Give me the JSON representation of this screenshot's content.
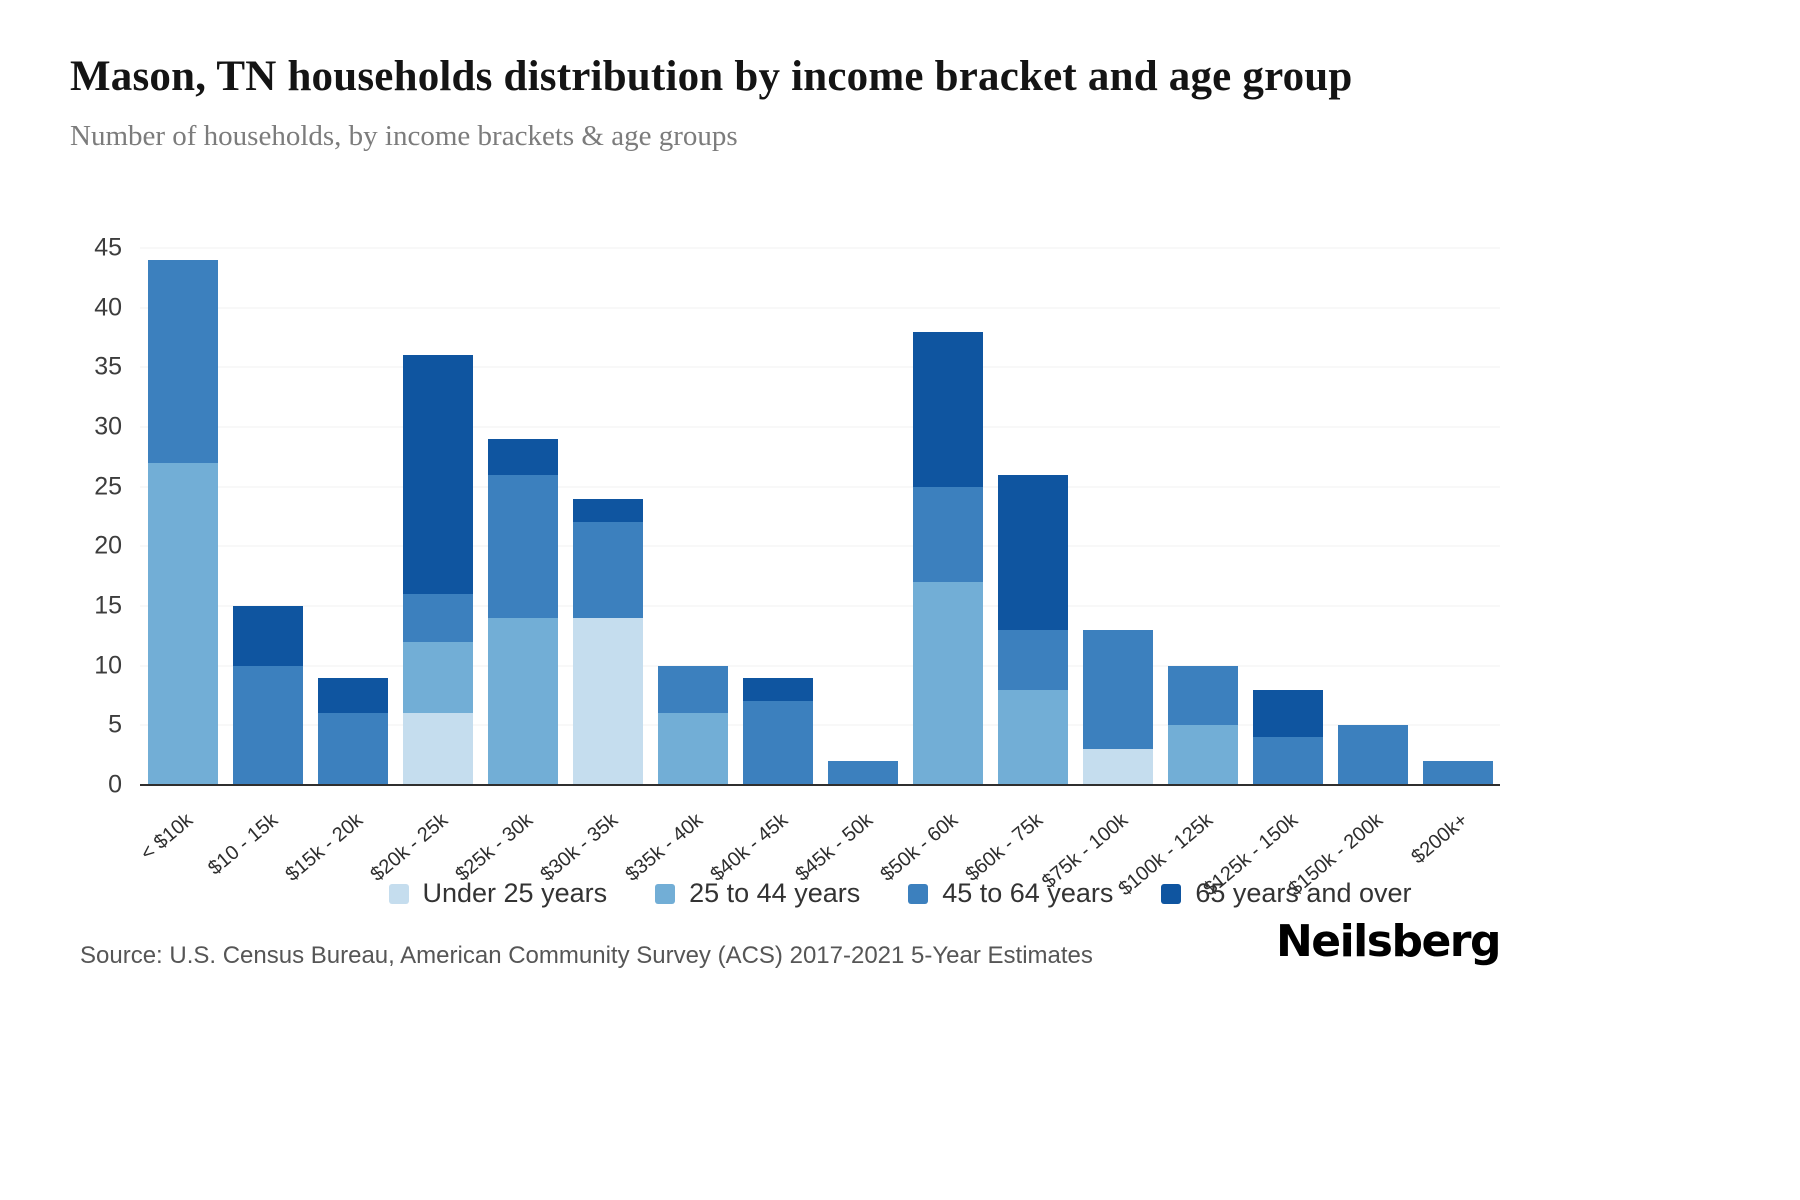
{
  "header": {
    "title": "Mason, TN households distribution by income bracket and age group",
    "subtitle": "Number of households, by income brackets & age groups"
  },
  "footer": {
    "source": "Source: U.S. Census Bureau, American Community Survey (ACS) 2017-2021 5-Year Estimates",
    "brand": "Neilsberg"
  },
  "chart_data": {
    "type": "bar",
    "stacked": true,
    "title": "Mason, TN households distribution by income bracket and age group",
    "xlabel": "",
    "ylabel": "Number of households",
    "ylim": [
      0,
      45
    ],
    "yticks": [
      0,
      5,
      10,
      15,
      20,
      25,
      30,
      35,
      40,
      45
    ],
    "grid": true,
    "legend_position": "bottom",
    "categories": [
      "< $10k",
      "$10 - 15k",
      "$15k - 20k",
      "$20k - 25k",
      "$25k - 30k",
      "$30k - 35k",
      "$35k - 40k",
      "$40k - 45k",
      "$45k - 50k",
      "$50k - 60k",
      "$60k - 75k",
      "$75k - 100k",
      "$100k - 125k",
      "$125k - 150k",
      "$150k - 200k",
      "$200k+"
    ],
    "series": [
      {
        "name": "Under 25 years",
        "color": "#c5ddee",
        "values": [
          0,
          0,
          0,
          6,
          0,
          14,
          0,
          0,
          0,
          0,
          0,
          3,
          0,
          0,
          0,
          0
        ]
      },
      {
        "name": "25 to 44 years",
        "color": "#72aed6",
        "values": [
          27,
          0,
          0,
          6,
          14,
          0,
          6,
          0,
          0,
          17,
          8,
          0,
          5,
          0,
          0,
          0
        ]
      },
      {
        "name": "45 to 64 years",
        "color": "#3c80be",
        "values": [
          17,
          10,
          6,
          4,
          12,
          8,
          4,
          7,
          2,
          8,
          5,
          10,
          5,
          4,
          5,
          2
        ]
      },
      {
        "name": "65 years and over",
        "color": "#0f55a0",
        "values": [
          0,
          5,
          3,
          20,
          3,
          2,
          0,
          2,
          0,
          13,
          13,
          0,
          0,
          4,
          0,
          0
        ]
      }
    ]
  }
}
